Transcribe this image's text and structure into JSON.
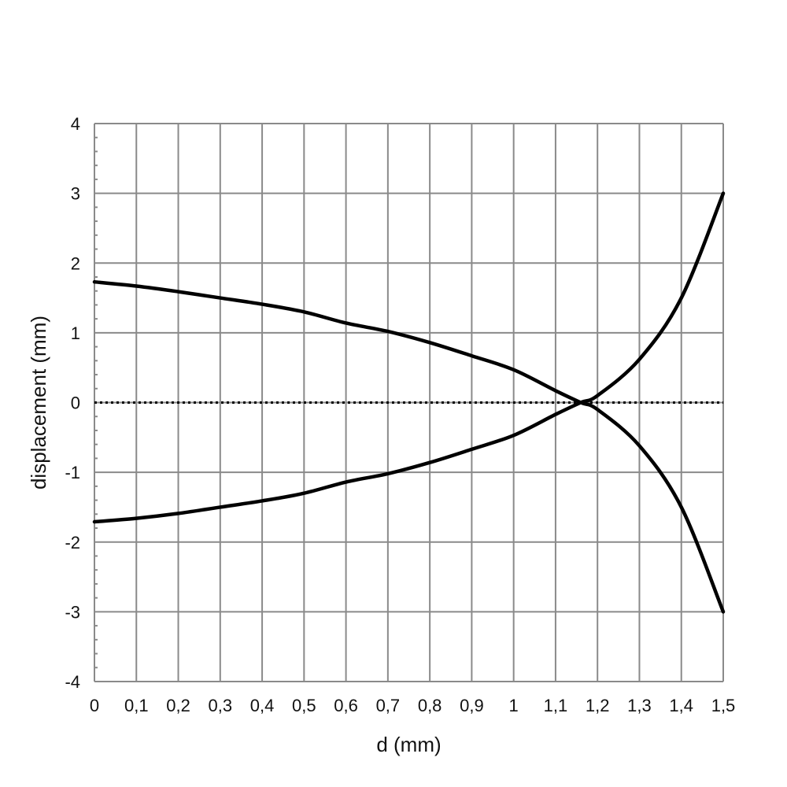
{
  "chart_data": {
    "type": "line",
    "xlabel": "d (mm)",
    "ylabel": "displacement (mm)",
    "xlim": [
      0,
      1.5
    ],
    "ylim": [
      -4,
      4
    ],
    "x_ticks": [
      "0",
      "0,1",
      "0,2",
      "0,3",
      "0,4",
      "0,5",
      "0,6",
      "0,7",
      "0,8",
      "0,9",
      "1",
      "1,1",
      "1,2",
      "1,3",
      "1,4",
      "1,5"
    ],
    "y_ticks": [
      "4",
      "3",
      "2",
      "1",
      "0",
      "-1",
      "-2",
      "-3",
      "-4"
    ],
    "grid": true,
    "zero_line": "dotted",
    "series": [
      {
        "x": [
          0,
          0.1,
          0.2,
          0.3,
          0.4,
          0.5,
          0.6,
          0.7,
          0.8,
          0.9,
          1.0,
          1.1,
          1.16,
          1.2,
          1.3,
          1.4,
          1.5
        ],
        "values": [
          1.73,
          1.67,
          1.59,
          1.5,
          1.41,
          1.3,
          1.14,
          1.02,
          0.86,
          0.67,
          0.47,
          0.17,
          0.0,
          -0.1,
          -0.62,
          -1.5,
          -3.0
        ]
      },
      {
        "x": [
          0,
          0.1,
          0.2,
          0.3,
          0.4,
          0.5,
          0.6,
          0.7,
          0.8,
          0.9,
          1.0,
          1.1,
          1.16,
          1.2,
          1.3,
          1.4,
          1.5
        ],
        "values": [
          -1.71,
          -1.66,
          -1.59,
          -1.5,
          -1.41,
          -1.3,
          -1.14,
          -1.02,
          -0.86,
          -0.67,
          -0.47,
          -0.17,
          0.0,
          0.1,
          0.62,
          1.5,
          3.0
        ]
      }
    ]
  }
}
